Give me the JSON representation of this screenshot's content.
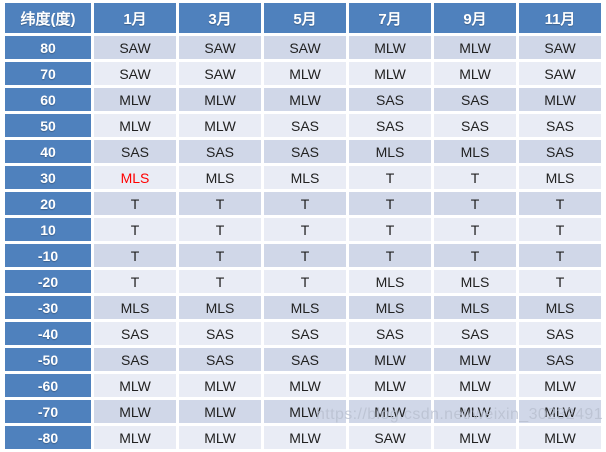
{
  "table": {
    "corner_header": "纬度(度)",
    "month_headers": [
      "1月",
      "3月",
      "5月",
      "7月",
      "9月",
      "11月"
    ],
    "rows": [
      {
        "lat": "80",
        "values": [
          "SAW",
          "SAW",
          "SAW",
          "MLW",
          "MLW",
          "SAW"
        ]
      },
      {
        "lat": "70",
        "values": [
          "SAW",
          "SAW",
          "MLW",
          "MLW",
          "MLW",
          "SAW"
        ]
      },
      {
        "lat": "60",
        "values": [
          "MLW",
          "MLW",
          "MLW",
          "SAS",
          "SAS",
          "MLW"
        ]
      },
      {
        "lat": "50",
        "values": [
          "MLW",
          "MLW",
          "SAS",
          "SAS",
          "SAS",
          "SAS"
        ]
      },
      {
        "lat": "40",
        "values": [
          "SAS",
          "SAS",
          "SAS",
          "MLS",
          "MLS",
          "SAS"
        ]
      },
      {
        "lat": "30",
        "values": [
          "MLS",
          "MLS",
          "MLS",
          "T",
          "T",
          "MLS"
        ]
      },
      {
        "lat": "20",
        "values": [
          "T",
          "T",
          "T",
          "T",
          "T",
          "T"
        ]
      },
      {
        "lat": "10",
        "values": [
          "T",
          "T",
          "T",
          "T",
          "T",
          "T"
        ]
      },
      {
        "lat": "-10",
        "values": [
          "T",
          "T",
          "T",
          "T",
          "T",
          "T"
        ]
      },
      {
        "lat": "-20",
        "values": [
          "T",
          "T",
          "T",
          "MLS",
          "MLS",
          "T"
        ]
      },
      {
        "lat": "-30",
        "values": [
          "MLS",
          "MLS",
          "MLS",
          "MLS",
          "MLS",
          "MLS"
        ]
      },
      {
        "lat": "-40",
        "values": [
          "SAS",
          "SAS",
          "SAS",
          "SAS",
          "SAS",
          "SAS"
        ]
      },
      {
        "lat": "-50",
        "values": [
          "SAS",
          "SAS",
          "SAS",
          "MLW",
          "MLW",
          "SAS"
        ]
      },
      {
        "lat": "-60",
        "values": [
          "MLW",
          "MLW",
          "MLW",
          "MLW",
          "MLW",
          "MLW"
        ]
      },
      {
        "lat": "-70",
        "values": [
          "MLW",
          "MLW",
          "MLW",
          "MLW",
          "MLW",
          "MLW"
        ]
      },
      {
        "lat": "-80",
        "values": [
          "MLW",
          "MLW",
          "MLW",
          "SAW",
          "MLW",
          "MLW"
        ]
      }
    ],
    "red_cells": [
      {
        "row_index": 5,
        "col_index": 0
      }
    ]
  },
  "colors": {
    "header_bg": "#4F81BD",
    "band_dark": "#D0D7E8",
    "band_light": "#E9ECF5",
    "red_text": "#FF0000",
    "grid": "#FFFFFF"
  },
  "watermark": "https://blog.csdn.net/weixin_30232491"
}
